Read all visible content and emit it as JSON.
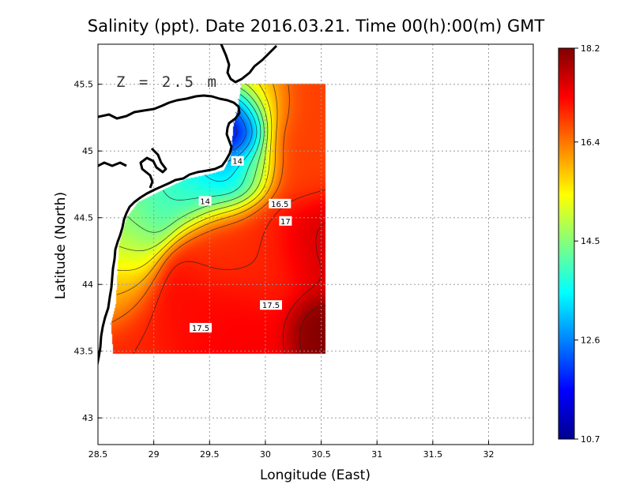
{
  "chart_data": {
    "type": "heatmap",
    "title": "Salinity (ppt). Date 2016.03.21. Time 00(h):00(m) GMT",
    "xlabel": "Longitude (East)",
    "ylabel": "Latitude (North)",
    "annotation": "Z = 2.5 m",
    "xlim": [
      28.5,
      32.4
    ],
    "ylim": [
      42.8,
      45.8
    ],
    "xticks": [
      "28.5",
      "29",
      "29.5",
      "30",
      "30.5",
      "31",
      "31.5",
      "32"
    ],
    "yticks": [
      "43",
      "43.5",
      "44",
      "44.5",
      "45",
      "45.5"
    ],
    "grid": true,
    "colorbar": {
      "min": 10.7,
      "max": 18.2,
      "ticks": [
        "10.7",
        "12.6",
        "14.5",
        "16.4",
        "18.2"
      ],
      "colors": [
        "#00008f",
        "#0000ff",
        "#0080ff",
        "#00ffff",
        "#80ff80",
        "#ffff00",
        "#ff8000",
        "#ff0000",
        "#800000"
      ]
    },
    "contour_labels": [
      {
        "text": "14",
        "lon": 29.75,
        "lat": 44.92
      },
      {
        "text": "14",
        "lon": 29.46,
        "lat": 44.62
      },
      {
        "text": "16.5",
        "lon": 30.13,
        "lat": 44.6
      },
      {
        "text": "17",
        "lon": 30.18,
        "lat": 44.47
      },
      {
        "text": "17.5",
        "lon": 30.05,
        "lat": 43.84
      },
      {
        "text": "17.5",
        "lon": 29.42,
        "lat": 43.67
      }
    ],
    "field_sources": [
      {
        "lon": 29.72,
        "lat": 45.1,
        "value": 10.7,
        "spread": 0.13
      },
      {
        "lon": 29.8,
        "lat": 45.25,
        "value": 11.8,
        "spread": 0.12
      },
      {
        "lon": 29.65,
        "lat": 44.78,
        "value": 12.8,
        "spread": 0.15
      },
      {
        "lon": 29.45,
        "lat": 44.75,
        "value": 13.4,
        "spread": 0.15
      },
      {
        "lon": 29.3,
        "lat": 44.68,
        "value": 13.8,
        "spread": 0.14
      },
      {
        "lon": 29.05,
        "lat": 44.62,
        "value": 14.0,
        "spread": 0.15
      },
      {
        "lon": 28.82,
        "lat": 44.5,
        "value": 14.4,
        "spread": 0.15
      },
      {
        "lon": 29.85,
        "lat": 44.92,
        "value": 14.5,
        "spread": 0.15
      },
      {
        "lon": 28.7,
        "lat": 44.25,
        "value": 15.0,
        "spread": 0.17
      },
      {
        "lon": 28.65,
        "lat": 43.95,
        "value": 16.0,
        "spread": 0.17
      },
      {
        "lon": 29.95,
        "lat": 45.38,
        "value": 15.5,
        "spread": 0.16
      },
      {
        "lon": 30.35,
        "lat": 45.4,
        "value": 16.8,
        "spread": 0.22
      },
      {
        "lon": 30.3,
        "lat": 44.9,
        "value": 16.8,
        "spread": 0.2
      },
      {
        "lon": 29.6,
        "lat": 44.35,
        "value": 16.9,
        "spread": 0.22
      },
      {
        "lon": 30.0,
        "lat": 44.2,
        "value": 17.0,
        "spread": 0.25
      },
      {
        "lon": 29.3,
        "lat": 43.75,
        "value": 17.2,
        "spread": 0.25
      },
      {
        "lon": 29.8,
        "lat": 43.6,
        "value": 17.3,
        "spread": 0.25
      },
      {
        "lon": 28.85,
        "lat": 43.55,
        "value": 17.0,
        "spread": 0.2
      },
      {
        "lon": 30.45,
        "lat": 44.3,
        "value": 17.6,
        "spread": 0.2
      },
      {
        "lon": 30.45,
        "lat": 43.65,
        "value": 18.2,
        "spread": 0.15
      }
    ]
  }
}
